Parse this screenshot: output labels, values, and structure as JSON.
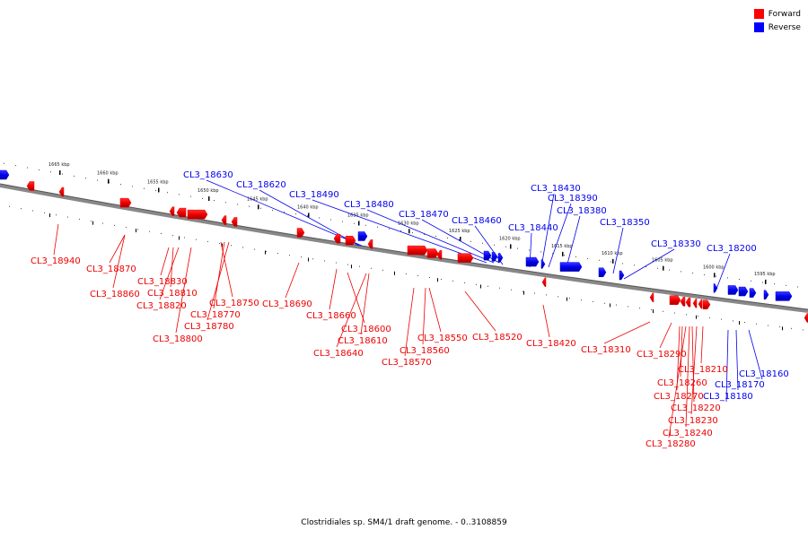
{
  "legend": [
    {
      "label": "Forward",
      "color": "#ff0000"
    },
    {
      "label": "Reverse",
      "color": "#0000ff"
    }
  ],
  "caption": "Clostridiales sp. SM4/1 draft genome. - 0..3108859",
  "scale_labels": [
    "1665 kbp",
    "1660 kbp",
    "1655 kbp",
    "1650 kbp",
    "1645 kbp",
    "1640 kbp",
    "1635 kbp",
    "1630 kbp",
    "1625 kbp",
    "1620 kbp",
    "1615 kbp",
    "1610 kbp",
    "1605 kbp",
    "1600 kbp",
    "1595 kbp"
  ],
  "genes": [
    {
      "id": "CL3_18940",
      "strand": "forward"
    },
    {
      "id": "CL3_18870",
      "strand": "forward"
    },
    {
      "id": "CL3_18860",
      "strand": "forward"
    },
    {
      "id": "CL3_18830",
      "strand": "forward"
    },
    {
      "id": "CL3_18810",
      "strand": "forward"
    },
    {
      "id": "CL3_18820",
      "strand": "forward"
    },
    {
      "id": "CL3_18800",
      "strand": "forward"
    },
    {
      "id": "CL3_18750",
      "strand": "forward"
    },
    {
      "id": "CL3_18770",
      "strand": "forward"
    },
    {
      "id": "CL3_18780",
      "strand": "forward"
    },
    {
      "id": "CL3_18690",
      "strand": "forward"
    },
    {
      "id": "CL3_18660",
      "strand": "forward"
    },
    {
      "id": "CL3_18600",
      "strand": "forward"
    },
    {
      "id": "CL3_18610",
      "strand": "forward"
    },
    {
      "id": "CL3_18640",
      "strand": "forward"
    },
    {
      "id": "CL3_18550",
      "strand": "forward"
    },
    {
      "id": "CL3_18560",
      "strand": "forward"
    },
    {
      "id": "CL3_18570",
      "strand": "forward"
    },
    {
      "id": "CL3_18520",
      "strand": "forward"
    },
    {
      "id": "CL3_18420",
      "strand": "forward"
    },
    {
      "id": "CL3_18310",
      "strand": "forward"
    },
    {
      "id": "CL3_18290",
      "strand": "forward"
    },
    {
      "id": "CL3_18210",
      "strand": "forward"
    },
    {
      "id": "CL3_18260",
      "strand": "forward"
    },
    {
      "id": "CL3_18270",
      "strand": "forward"
    },
    {
      "id": "CL3_18220",
      "strand": "forward"
    },
    {
      "id": "CL3_18230",
      "strand": "forward"
    },
    {
      "id": "CL3_18240",
      "strand": "forward"
    },
    {
      "id": "CL3_18280",
      "strand": "forward"
    },
    {
      "id": "CL3_18630",
      "strand": "reverse"
    },
    {
      "id": "CL3_18620",
      "strand": "reverse"
    },
    {
      "id": "CL3_18490",
      "strand": "reverse"
    },
    {
      "id": "CL3_18480",
      "strand": "reverse"
    },
    {
      "id": "CL3_18470",
      "strand": "reverse"
    },
    {
      "id": "CL3_18460",
      "strand": "reverse"
    },
    {
      "id": "CL3_18430",
      "strand": "reverse"
    },
    {
      "id": "CL3_18390",
      "strand": "reverse"
    },
    {
      "id": "CL3_18380",
      "strand": "reverse"
    },
    {
      "id": "CL3_18440",
      "strand": "reverse"
    },
    {
      "id": "CL3_18350",
      "strand": "reverse"
    },
    {
      "id": "CL3_18330",
      "strand": "reverse"
    },
    {
      "id": "CL3_18200",
      "strand": "reverse"
    },
    {
      "id": "CL3_18160",
      "strand": "reverse"
    },
    {
      "id": "CL3_18170",
      "strand": "reverse"
    },
    {
      "id": "CL3_18180",
      "strand": "reverse"
    }
  ]
}
